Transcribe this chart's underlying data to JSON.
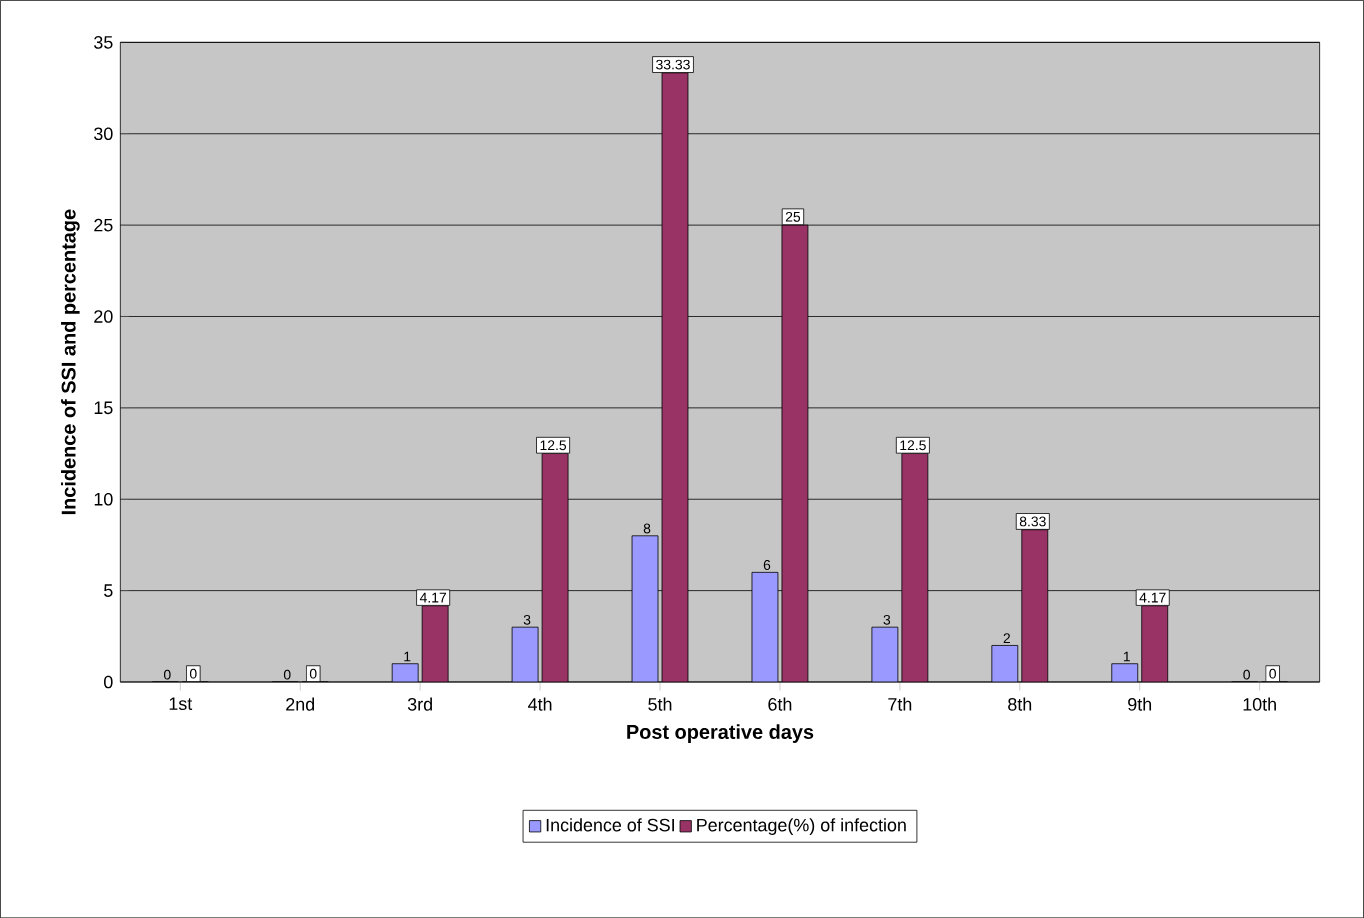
{
  "chart_data": {
    "type": "bar",
    "xlabel": "Post operative days",
    "ylabel": "Incidence of SSI and percentage",
    "categories": [
      "1st",
      "2nd",
      "3rd",
      "4th",
      "5th",
      "6th",
      "7th",
      "8th",
      "9th",
      "10th"
    ],
    "series": [
      {
        "name": "Incidence of SSI",
        "color": "#9999ff",
        "values": [
          0,
          0,
          1,
          3,
          8,
          6,
          3,
          2,
          1,
          0
        ]
      },
      {
        "name": "Percentage(%) of infection",
        "color": "#993366",
        "values": [
          0,
          0,
          4.17,
          12.5,
          33.33,
          25,
          12.5,
          8.33,
          4.17,
          0
        ]
      }
    ],
    "ylim": [
      0,
      35
    ],
    "yticks": [
      0,
      5,
      10,
      15,
      20,
      25,
      30,
      35
    ],
    "grid": "y",
    "legend": "bottom",
    "data_labels": true
  }
}
